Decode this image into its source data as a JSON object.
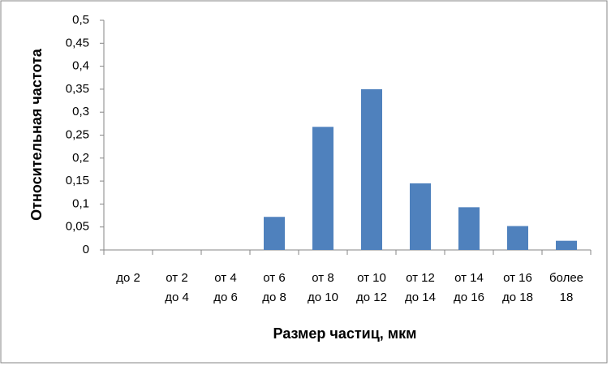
{
  "chart_data": {
    "type": "bar",
    "y_label": "Относительная частота",
    "x_label": "Размер частиц, мкм",
    "categories": [
      [
        "до 2"
      ],
      [
        "от 2",
        "до 4"
      ],
      [
        "от 4",
        "до 6"
      ],
      [
        "от 6",
        "до 8"
      ],
      [
        "от 8",
        "до 10"
      ],
      [
        "от 10",
        "до 12"
      ],
      [
        "от 12",
        "до 14"
      ],
      [
        "от 14",
        "до 16"
      ],
      [
        "от 16",
        "до 18"
      ],
      [
        "более",
        "18"
      ]
    ],
    "values": [
      0,
      0,
      0,
      0.072,
      0.268,
      0.35,
      0.145,
      0.093,
      0.052,
      0.02
    ],
    "color": "#4f81bd",
    "ylim": [
      0,
      0.5
    ],
    "yticks": [
      0,
      {
        "value": 0.05,
        "label": "0,05"
      },
      {
        "value": 0.1,
        "label": "0,1"
      },
      {
        "value": 0.15,
        "label": "0,15"
      },
      {
        "value": 0.2,
        "label": "0,2"
      },
      {
        "value": 0.25,
        "label": "0,25"
      },
      {
        "value": 0.3,
        "label": "0,3"
      },
      {
        "value": 0.35,
        "label": "0,35"
      },
      {
        "value": 0.4,
        "label": "0,4"
      },
      {
        "value": 0.45,
        "label": "0,45"
      },
      {
        "value": 0.5,
        "label": "0,5"
      }
    ],
    "grid": false
  }
}
